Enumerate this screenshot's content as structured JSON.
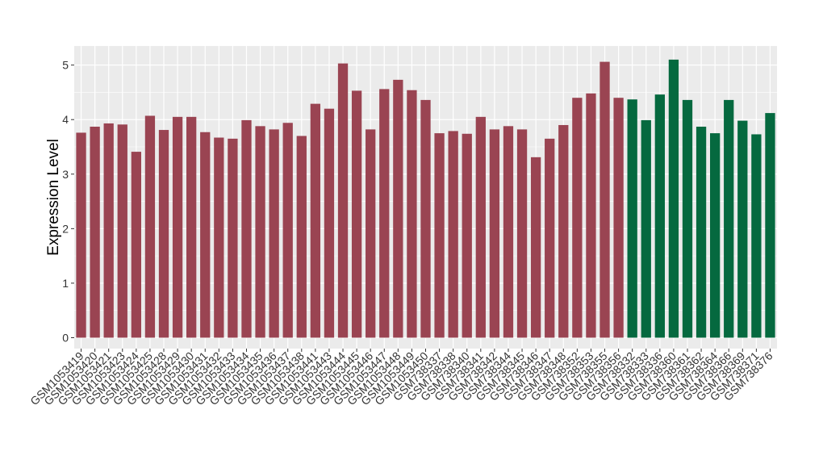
{
  "chart_data": {
    "type": "bar",
    "ylabel": "Expression Level",
    "xlabel": "",
    "ylim": [
      -0.2,
      5.35
    ],
    "yticks": [
      0,
      1,
      2,
      3,
      4,
      5
    ],
    "grid": true,
    "legend": "none",
    "colors": {
      "group1": "#9a4452",
      "group2": "#05693f",
      "panel_bg": "#ebebeb",
      "grid": "#ffffff"
    },
    "categories": [
      "GSM1053419",
      "GSM1053420",
      "GSM1053421",
      "GSM1053423",
      "GSM1053424",
      "GSM1053425",
      "GSM1053428",
      "GSM1053429",
      "GSM1053430",
      "GSM1053431",
      "GSM1053432",
      "GSM1053433",
      "GSM1053434",
      "GSM1053435",
      "GSM1053436",
      "GSM1053437",
      "GSM1053438",
      "GSM1053441",
      "GSM1053443",
      "GSM1053444",
      "GSM1053445",
      "GSM1053446",
      "GSM1053447",
      "GSM1053448",
      "GSM1053449",
      "GSM1053450",
      "GSM738337",
      "GSM738338",
      "GSM738340",
      "GSM738341",
      "GSM738342",
      "GSM738344",
      "GSM738345",
      "GSM738346",
      "GSM738347",
      "GSM738348",
      "GSM738352",
      "GSM738353",
      "GSM738355",
      "GSM738356",
      "GSM738332",
      "GSM738333",
      "GSM738336",
      "GSM738360",
      "GSM738361",
      "GSM738362",
      "GSM738364",
      "GSM738366",
      "GSM738369",
      "GSM738371",
      "GSM738376"
    ],
    "values": [
      3.76,
      3.87,
      3.93,
      3.91,
      3.41,
      4.07,
      3.81,
      4.05,
      4.05,
      3.77,
      3.67,
      3.65,
      3.99,
      3.88,
      3.82,
      3.94,
      3.7,
      4.29,
      4.2,
      5.03,
      4.53,
      3.82,
      4.56,
      4.73,
      4.54,
      4.36,
      3.75,
      3.79,
      3.74,
      4.05,
      3.82,
      3.88,
      3.82,
      3.31,
      3.65,
      3.9,
      4.4,
      4.48,
      5.06,
      4.4,
      4.37,
      3.99,
      4.46,
      5.1,
      4.36,
      3.87,
      3.75,
      4.36,
      3.98,
      3.73,
      4.12
    ],
    "groups": [
      1,
      1,
      1,
      1,
      1,
      1,
      1,
      1,
      1,
      1,
      1,
      1,
      1,
      1,
      1,
      1,
      1,
      1,
      1,
      1,
      1,
      1,
      1,
      1,
      1,
      1,
      1,
      1,
      1,
      1,
      1,
      1,
      1,
      1,
      1,
      1,
      1,
      1,
      1,
      1,
      2,
      2,
      2,
      2,
      2,
      2,
      2,
      2,
      2,
      2,
      2
    ]
  }
}
